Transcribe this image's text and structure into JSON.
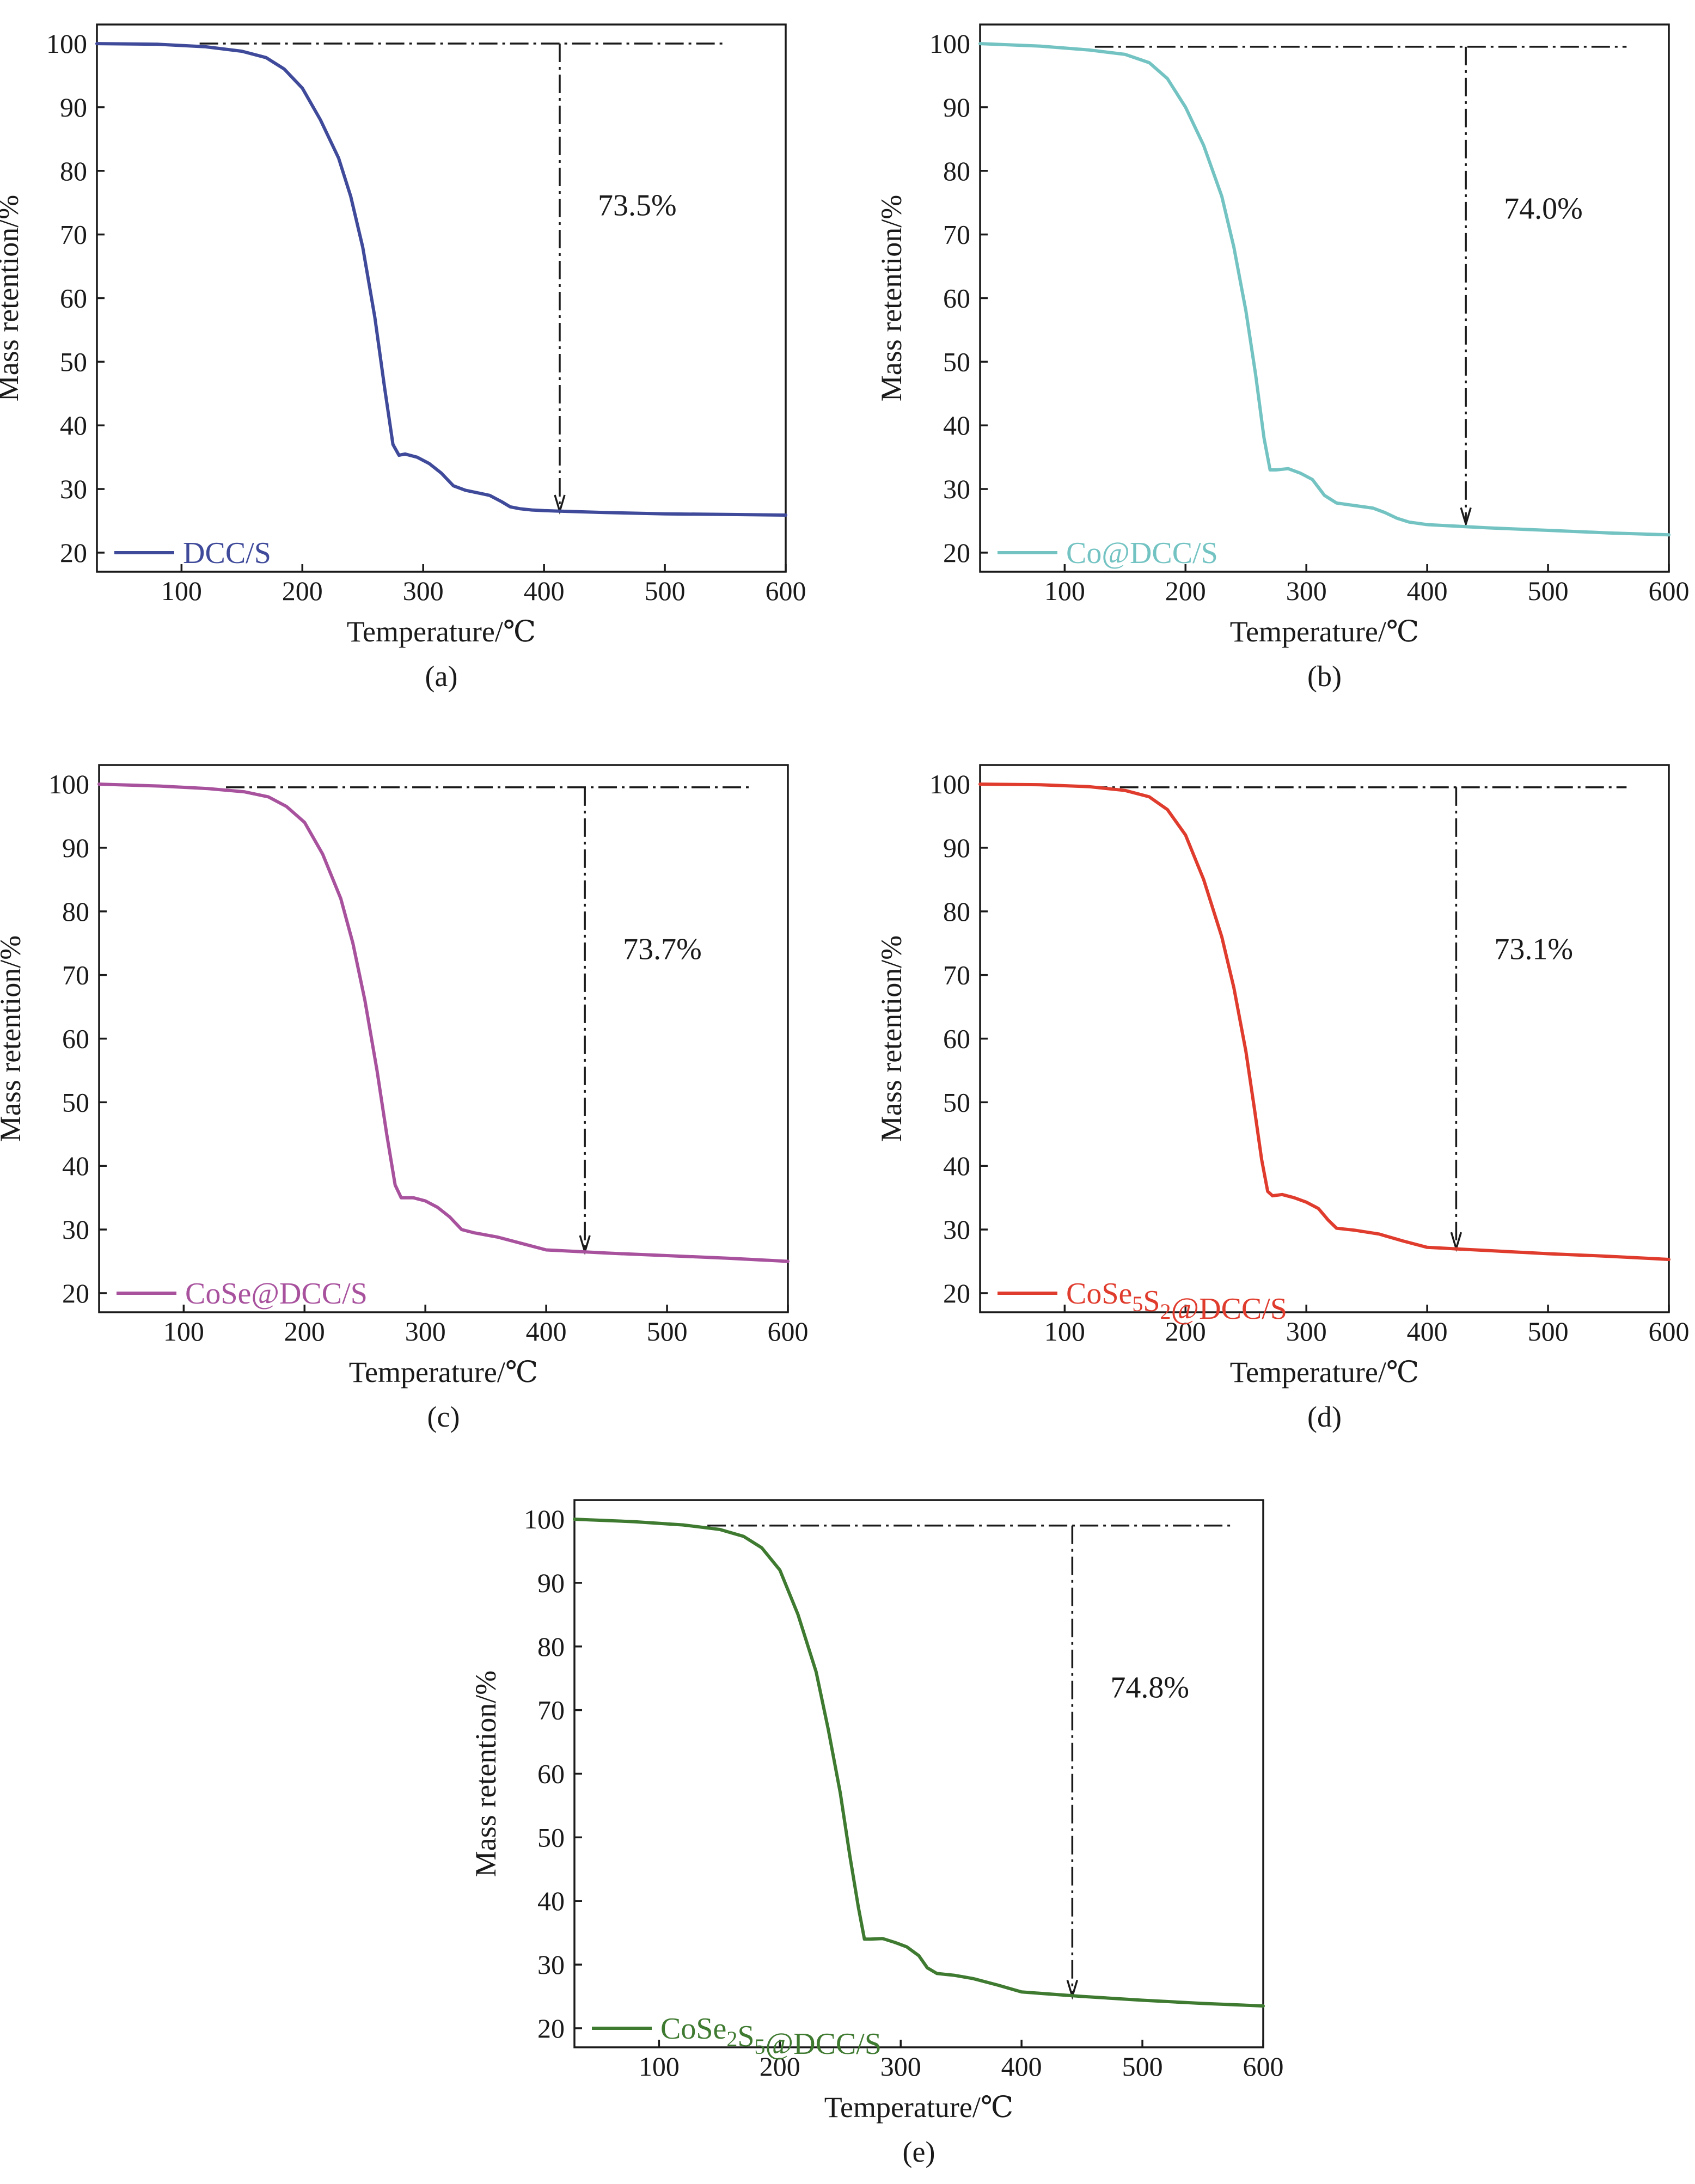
{
  "figure": {
    "background": "#ffffff"
  },
  "chart_data": [
    {
      "id": "a",
      "type": "line",
      "panel_label": "(a)",
      "xlabel": "Temperature/℃",
      "ylabel": "Mass retention/%",
      "xlim": [
        30,
        600
      ],
      "ylim": [
        17,
        103
      ],
      "xticks": [
        100,
        200,
        300,
        400,
        500,
        600
      ],
      "yticks": [
        20,
        30,
        40,
        50,
        60,
        70,
        80,
        90,
        100
      ],
      "legend": "DCC/S",
      "legend_position": "bottom-left",
      "color": "#3f4a9a",
      "annotation": {
        "text": "73.5%",
        "reference_y": 100,
        "arrow_x": 413,
        "arrow_end_y": 26.5,
        "dash_x_range": [
          115,
          550
        ]
      },
      "series": [
        {
          "name": "DCC/S",
          "x": [
            30,
            80,
            120,
            150,
            170,
            185,
            200,
            215,
            230,
            240,
            250,
            260,
            268,
            275,
            280,
            285,
            295,
            305,
            315,
            325,
            335,
            345,
            355,
            365,
            372,
            380,
            390,
            400,
            450,
            500,
            550,
            600
          ],
          "y": [
            100,
            99.9,
            99.5,
            98.8,
            97.8,
            96,
            93,
            88,
            82,
            76,
            68,
            57,
            46,
            37,
            35.3,
            35.5,
            35,
            34,
            32.5,
            30.5,
            29.8,
            29.4,
            29,
            28,
            27.2,
            26.9,
            26.7,
            26.6,
            26.3,
            26.1,
            26,
            25.9
          ]
        }
      ]
    },
    {
      "id": "b",
      "type": "line",
      "panel_label": "(b)",
      "xlabel": "Temperature/℃",
      "ylabel": "Mass retention/%",
      "xlim": [
        30,
        600
      ],
      "ylim": [
        17,
        103
      ],
      "xticks": [
        100,
        200,
        300,
        400,
        500,
        600
      ],
      "yticks": [
        20,
        30,
        40,
        50,
        60,
        70,
        80,
        90,
        100
      ],
      "legend": "Co@DCC/S",
      "legend_position": "bottom-left",
      "color": "#74c3c3",
      "annotation": {
        "text": "74.0%",
        "reference_y": 99.5,
        "arrow_x": 432,
        "arrow_end_y": 24.5,
        "dash_x_range": [
          125,
          565
        ]
      },
      "series": [
        {
          "name": "Co@DCC/S",
          "x": [
            30,
            80,
            120,
            150,
            170,
            185,
            200,
            215,
            230,
            240,
            250,
            258,
            265,
            270,
            275,
            285,
            295,
            305,
            315,
            325,
            340,
            355,
            365,
            375,
            385,
            400,
            450,
            500,
            550,
            600
          ],
          "y": [
            100,
            99.6,
            99,
            98.3,
            97,
            94.5,
            90,
            84,
            76,
            68,
            58,
            48,
            38,
            33,
            33,
            33.2,
            32.5,
            31.5,
            29,
            27.8,
            27.4,
            27,
            26.3,
            25.4,
            24.8,
            24.4,
            23.9,
            23.5,
            23.1,
            22.8
          ]
        }
      ]
    },
    {
      "id": "c",
      "type": "line",
      "panel_label": "(c)",
      "xlabel": "Temperature/℃",
      "ylabel": "Mass retention/%",
      "xlim": [
        30,
        600
      ],
      "ylim": [
        17,
        103
      ],
      "xticks": [
        100,
        200,
        300,
        400,
        500,
        600
      ],
      "yticks": [
        20,
        30,
        40,
        50,
        60,
        70,
        80,
        90,
        100
      ],
      "legend": "CoSe@DCC/S",
      "legend_position": "bottom-left",
      "color": "#a8529e",
      "annotation": {
        "text": "73.7%",
        "reference_y": 99.5,
        "arrow_x": 432,
        "arrow_end_y": 26.5,
        "dash_x_range": [
          135,
          570
        ]
      },
      "series": [
        {
          "name": "CoSe@DCC/S",
          "x": [
            30,
            80,
            120,
            150,
            170,
            185,
            200,
            215,
            230,
            240,
            250,
            260,
            268,
            275,
            280,
            290,
            300,
            310,
            320,
            330,
            340,
            360,
            380,
            400,
            450,
            500,
            550,
            600
          ],
          "y": [
            100,
            99.7,
            99.3,
            98.8,
            98,
            96.5,
            94,
            89,
            82,
            75,
            66,
            55,
            45,
            37,
            35,
            35,
            34.5,
            33.5,
            32,
            30,
            29.5,
            28.8,
            27.8,
            26.8,
            26.3,
            25.9,
            25.5,
            25
          ]
        }
      ]
    },
    {
      "id": "d",
      "type": "line",
      "panel_label": "(d)",
      "xlabel": "Temperature/℃",
      "ylabel": "Mass retention/%",
      "xlim": [
        30,
        600
      ],
      "ylim": [
        17,
        103
      ],
      "xticks": [
        100,
        200,
        300,
        400,
        500,
        600
      ],
      "yticks": [
        20,
        30,
        40,
        50,
        60,
        70,
        80,
        90,
        100
      ],
      "legend": "CoSe₅S₂@DCC/S",
      "legend_position": "bottom-left",
      "color": "#e03c2e",
      "annotation": {
        "text": "73.1%",
        "reference_y": 99.5,
        "arrow_x": 424,
        "arrow_end_y": 27,
        "dash_x_range": [
          120,
          565
        ]
      },
      "series": [
        {
          "name": "CoSe₅S₂@DCC/S",
          "x": [
            30,
            80,
            120,
            150,
            170,
            185,
            200,
            215,
            230,
            240,
            250,
            257,
            263,
            268,
            272,
            280,
            290,
            300,
            310,
            318,
            325,
            340,
            360,
            380,
            400,
            450,
            500,
            550,
            600
          ],
          "y": [
            100,
            99.9,
            99.6,
            99,
            98,
            96,
            92,
            85,
            76,
            68,
            58,
            49,
            41,
            36,
            35.3,
            35.5,
            35,
            34.3,
            33.3,
            31.5,
            30.2,
            29.9,
            29.3,
            28.2,
            27.2,
            26.7,
            26.2,
            25.8,
            25.3
          ]
        }
      ]
    },
    {
      "id": "e",
      "type": "line",
      "panel_label": "(e)",
      "xlabel": "Temperature/℃",
      "ylabel": "Mass retention/%",
      "xlim": [
        30,
        600
      ],
      "ylim": [
        17,
        103
      ],
      "xticks": [
        100,
        200,
        300,
        400,
        500,
        600
      ],
      "yticks": [
        20,
        30,
        40,
        50,
        60,
        70,
        80,
        90,
        100
      ],
      "legend": "CoSe₂S₅@DCC/S",
      "legend_position": "bottom-left",
      "color": "#3f7a31",
      "annotation": {
        "text": "74.8%",
        "reference_y": 99,
        "arrow_x": 442,
        "arrow_end_y": 25,
        "dash_x_range": [
          140,
          575
        ]
      },
      "series": [
        {
          "name": "CoSe₂S₅@DCC/S",
          "x": [
            30,
            80,
            120,
            150,
            170,
            185,
            200,
            215,
            230,
            240,
            250,
            258,
            265,
            270,
            275,
            285,
            295,
            305,
            315,
            322,
            330,
            345,
            360,
            380,
            400,
            450,
            500,
            550,
            600
          ],
          "y": [
            100,
            99.6,
            99.1,
            98.4,
            97.3,
            95.5,
            92,
            85,
            76,
            67,
            57,
            47,
            39,
            34,
            34,
            34.1,
            33.5,
            32.8,
            31.4,
            29.5,
            28.6,
            28.3,
            27.8,
            26.8,
            25.7,
            25,
            24.4,
            23.9,
            23.5
          ]
        }
      ]
    }
  ]
}
